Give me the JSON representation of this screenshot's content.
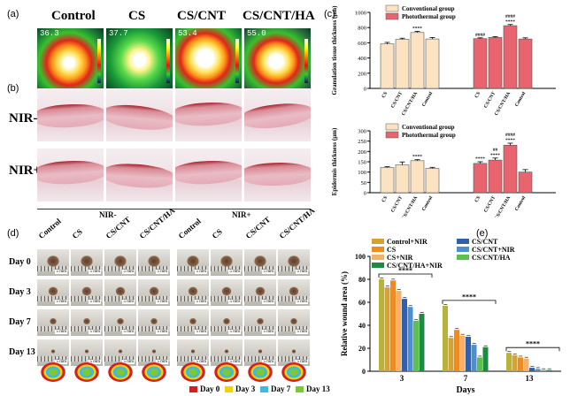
{
  "panel_labels": {
    "a": "(a)",
    "b": "(b)",
    "c": "(c)",
    "d": "(d)",
    "e": "(e)"
  },
  "panel_a": {
    "columns": [
      "Control",
      "CS",
      "CS/CNT",
      "CS/CNT/HA"
    ],
    "temperatures": [
      "36.3",
      "37.7",
      "53.4",
      "55.0"
    ]
  },
  "panel_b": {
    "rows": [
      "NIR-",
      "NIR+"
    ],
    "group_labels": [
      "NIR-",
      "NIR+"
    ]
  },
  "panel_d": {
    "columns": [
      "Control",
      "CS",
      "CS/CNT",
      "CS/CNT/HA",
      "Control",
      "CS",
      "CS/CNT",
      "CS/CNT/HA"
    ],
    "days": [
      "Day 0",
      "Day 3",
      "Day 7",
      "Day 13"
    ],
    "scale_text": "5 mm",
    "legend": [
      {
        "label": "Day 0",
        "color": "#d21f1f"
      },
      {
        "label": "Day 3",
        "color": "#f2d500"
      },
      {
        "label": "Day 7",
        "color": "#3fb8e8"
      },
      {
        "label": "Day 13",
        "color": "#7ec832"
      }
    ]
  },
  "chart_data": [
    {
      "type": "bar",
      "title": "",
      "ylabel": "Granulation tissue thickness (μm)",
      "ylim": [
        0,
        1000
      ],
      "yticks": [
        0,
        200,
        400,
        600,
        800,
        1000
      ],
      "categories": [
        "CS",
        "CS/CNT",
        "CS/CNT/HA",
        "Control"
      ],
      "legend": [
        "Conventional group",
        "Photothermal group"
      ],
      "series": [
        {
          "name": "Conventional group",
          "color": "#fbe3c2",
          "values": [
            585,
            645,
            735,
            650
          ],
          "errors": [
            20,
            15,
            15,
            20
          ],
          "annotations": [
            "",
            "",
            "****",
            ""
          ]
        },
        {
          "name": "Photothermal group",
          "color": "#e8646e",
          "values": [
            655,
            670,
            825,
            650
          ],
          "errors": [
            10,
            10,
            15,
            15
          ],
          "annotations": [
            "####",
            "",
            "####\n****",
            ""
          ]
        }
      ]
    },
    {
      "type": "bar",
      "title": "",
      "ylabel": "Epidermis thickness (μm)",
      "ylim": [
        0,
        300
      ],
      "yticks": [
        0,
        50,
        100,
        150,
        200,
        250,
        300
      ],
      "categories": [
        "CS",
        "CS/CNT",
        "CS/CNT/HA",
        "Control"
      ],
      "legend": [
        "Conventional group",
        "Photothermal group"
      ],
      "series": [
        {
          "name": "Conventional group",
          "color": "#fbe3c2",
          "values": [
            122,
            135,
            155,
            118
          ],
          "errors": [
            4,
            14,
            5,
            5
          ],
          "annotations": [
            "",
            "",
            "****",
            ""
          ]
        },
        {
          "name": "Photothermal group",
          "color": "#e8646e",
          "values": [
            142,
            158,
            230,
            100
          ],
          "errors": [
            8,
            10,
            10,
            12
          ],
          "annotations": [
            "****",
            "##\n****",
            "####\n****",
            ""
          ]
        }
      ]
    },
    {
      "type": "bar",
      "title": "",
      "xlabel": "Days",
      "ylabel": "Relative wound area (%)",
      "ylim": [
        0,
        100
      ],
      "yticks": [
        0,
        20,
        40,
        60,
        80,
        100
      ],
      "categories": [
        "3",
        "7",
        "13"
      ],
      "legend_labels": [
        "Control+NIR",
        "CS/CNT",
        "CS",
        "CS/CNT+NIR",
        "CS+NIR",
        "CS/CNT/HA",
        "CS/CNT/HA+NIR"
      ],
      "series": [
        {
          "name": "Control",
          "color": "#b8b23a",
          "values": [
            80,
            57,
            16
          ]
        },
        {
          "name": "Control+NIR",
          "color": "#d6a32e",
          "values": [
            73,
            29,
            14
          ]
        },
        {
          "name": "CS",
          "color": "#f08a23",
          "values": [
            79,
            36,
            12
          ]
        },
        {
          "name": "CS+NIR",
          "color": "#f5b06a",
          "values": [
            70,
            31,
            11
          ]
        },
        {
          "name": "CS/CNT",
          "color": "#2f5fae",
          "values": [
            63,
            30,
            3
          ]
        },
        {
          "name": "CS/CNT+NIR",
          "color": "#4a8fd4",
          "values": [
            56,
            23,
            2
          ]
        },
        {
          "name": "CS/CNT/HA",
          "color": "#5cc04c",
          "values": [
            44,
            12,
            1
          ]
        },
        {
          "name": "CS/CNT/HA+NIR",
          "color": "#1e8a44",
          "values": [
            50,
            21,
            1
          ]
        }
      ],
      "significance": [
        "****",
        "****",
        "****"
      ]
    }
  ]
}
